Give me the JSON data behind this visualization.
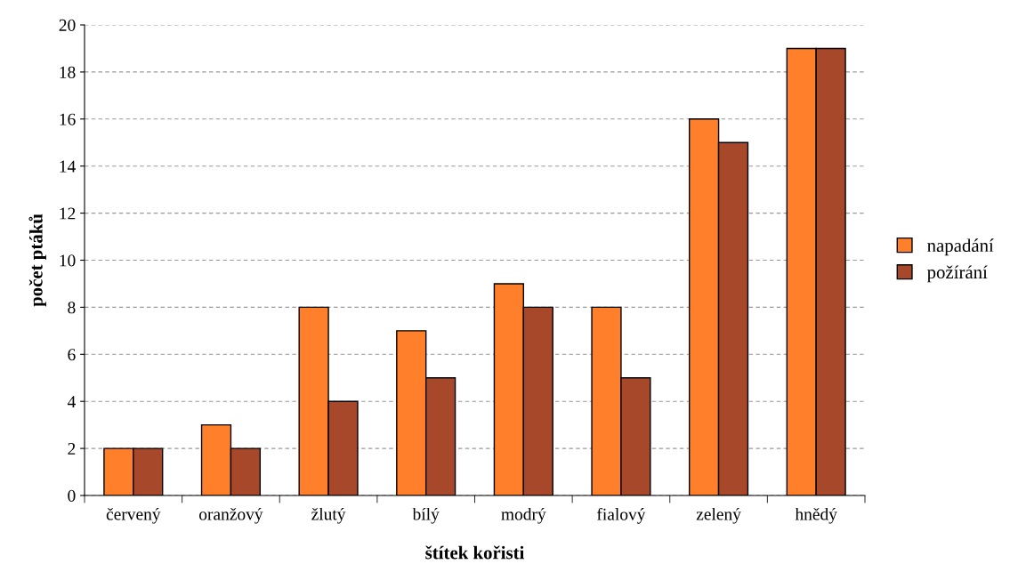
{
  "chart_data": {
    "type": "bar",
    "xlabel": "štítek kořisti",
    "ylabel": "počet ptáků",
    "categories": [
      "červený",
      "oranžový",
      "žlutý",
      "bílý",
      "modrý",
      "fialový",
      "zelený",
      "hnědý"
    ],
    "series": [
      {
        "name": "napadání",
        "color": "#ff7f2a",
        "values": [
          2,
          3,
          8,
          7,
          9,
          8,
          16,
          19
        ]
      },
      {
        "name": "požírání",
        "color": "#a8482a",
        "values": [
          2,
          2,
          4,
          5,
          8,
          5,
          15,
          19
        ]
      }
    ],
    "ylim": [
      0,
      20
    ],
    "yticks": [
      0,
      2,
      4,
      6,
      8,
      10,
      12,
      14,
      16,
      18,
      20
    ],
    "grid": "y",
    "legend": "right"
  }
}
